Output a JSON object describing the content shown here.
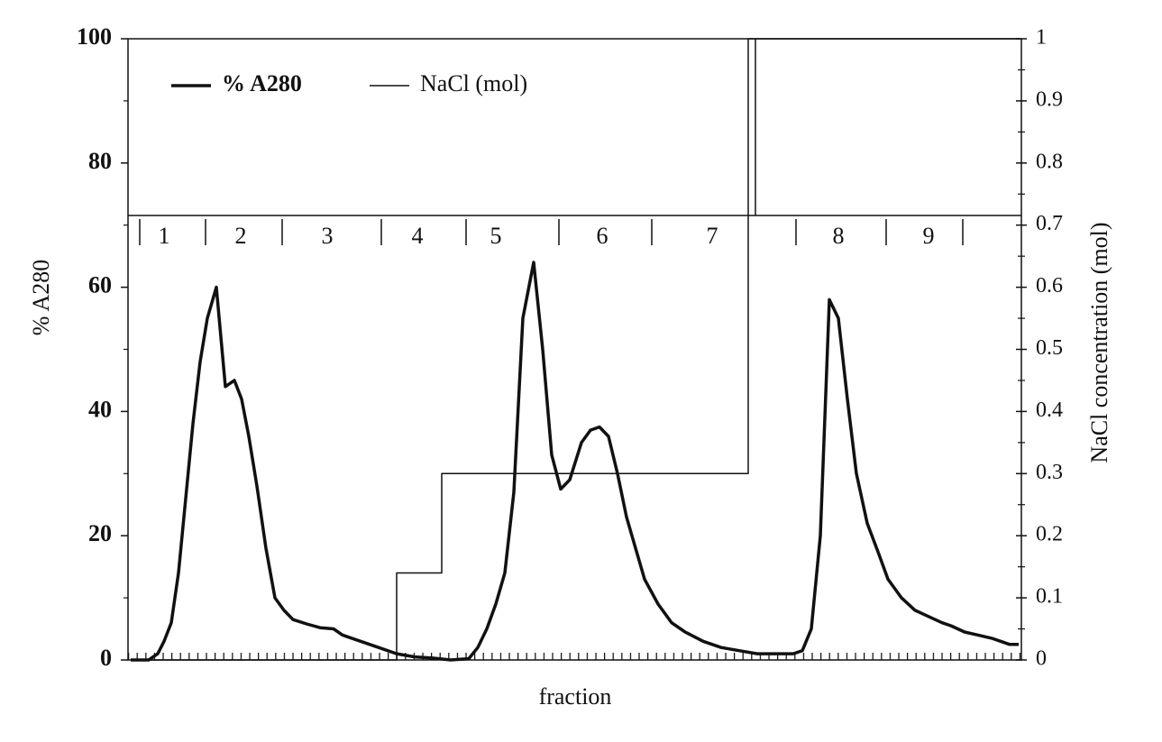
{
  "chart_data": {
    "type": "line",
    "x_label": "fraction",
    "y_label": "% A280",
    "y2_label": "NaCl concentration (mol)",
    "xlim": [
      0,
      99.1
    ],
    "ylim": [
      0,
      100
    ],
    "yticks": [
      0,
      20,
      40,
      60,
      80,
      100
    ],
    "y2lim": [
      0,
      1
    ],
    "y2ticks": [
      0,
      0.1,
      0.2,
      0.3,
      0.4,
      0.5,
      0.6,
      0.7,
      0.8,
      0.9,
      1
    ],
    "pools": [
      "1",
      "2",
      "3",
      "4",
      "5",
      "6",
      "7",
      "8",
      "9"
    ],
    "series": [
      {
        "name": "% A280",
        "color": "#111111",
        "x": [
          0.3,
          2.3,
          3.3,
          4,
          4.8,
          5.6,
          6.4,
          7.2,
          8,
          8.8,
          9.8,
          10.8,
          11.8,
          12.6,
          13.4,
          14.3,
          15.3,
          16.3,
          17.3,
          18.3,
          19.8,
          21.3,
          22.8,
          23.8,
          25.8,
          27.8,
          29.8,
          31.8,
          33.8,
          35.8,
          37.8,
          38.8,
          39.8,
          40.8,
          41.8,
          42.8,
          43.8,
          45,
          46,
          47,
          48,
          49,
          50.3,
          51.3,
          52.3,
          53.3,
          54.3,
          55.3,
          56.3,
          57.3,
          58.8,
          60.3,
          61.8,
          63.8,
          65.8,
          67.8,
          69.8,
          71.8,
          73.8,
          74.8,
          75.8,
          76.8,
          77.8,
          78.8,
          79.8,
          80.8,
          82,
          83.3,
          84.3,
          85.8,
          87.3,
          88.8,
          90.3,
          91.3,
          92.8,
          94.3,
          95.8,
          96.8,
          97.8,
          98.8
        ],
        "values": [
          0,
          0,
          1,
          3,
          6,
          14,
          26,
          38,
          48,
          55,
          60,
          44,
          45,
          42,
          36,
          28,
          18,
          10,
          8,
          6.5,
          5.8,
          5.2,
          5,
          4,
          3,
          2,
          1,
          0.5,
          0.3,
          0,
          0.2,
          2,
          5,
          9,
          14,
          27,
          55,
          64,
          50,
          33,
          27.5,
          29,
          35,
          37,
          37.5,
          36,
          30,
          23,
          18,
          13,
          9,
          6,
          4.5,
          3,
          2,
          1.5,
          1,
          1,
          1,
          1.5,
          5,
          20,
          58,
          55,
          42,
          30,
          22,
          17,
          13,
          10,
          8,
          7,
          6,
          5.5,
          4.5,
          4,
          3.5,
          3,
          2.5,
          2.5
        ]
      },
      {
        "name": "NaCl (mol)",
        "color": "#111111",
        "axis": "y2",
        "x": [
          0.3,
          29.8,
          29.8,
          34.8,
          34.8,
          68.8,
          68.8,
          98.9
        ],
        "values": [
          0,
          0,
          0.14,
          0.14,
          0.3,
          0.3,
          1,
          1
        ]
      }
    ]
  }
}
